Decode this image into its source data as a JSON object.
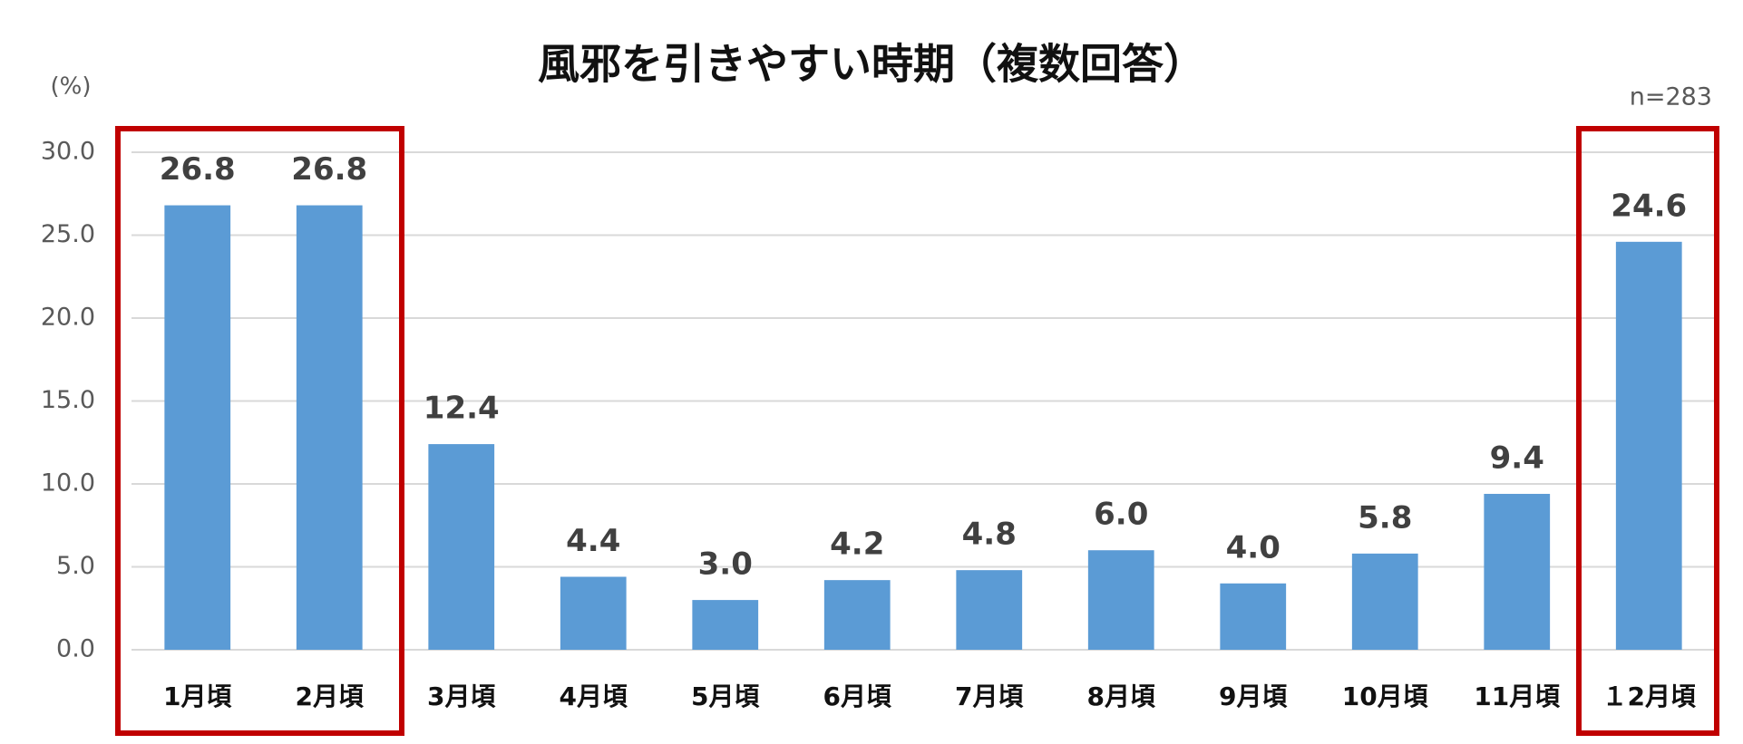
{
  "chart_data": {
    "type": "bar",
    "title": "風邪を引きやすい時期（複数回答）",
    "y_axis_label": "(%)",
    "annotation": "n=283",
    "categories": [
      "1月頃",
      "2月頃",
      "3月頃",
      "4月頃",
      "5月頃",
      "6月頃",
      "7月頃",
      "8月頃",
      "9月頃",
      "10月頃",
      "11月頃",
      "１2月頃"
    ],
    "values": [
      26.8,
      26.8,
      12.4,
      4.4,
      3.0,
      4.2,
      4.8,
      6.0,
      4.0,
      5.8,
      9.4,
      24.6
    ],
    "value_labels": [
      "26.8",
      "26.8",
      "12.4",
      "4.4",
      "3.0",
      "4.2",
      "4.8",
      "6.0",
      "4.0",
      "5.8",
      "9.4",
      "24.6"
    ],
    "color": "#5b9bd5",
    "ylim": [
      0,
      30
    ],
    "yticks": [
      {
        "value": 0,
        "label": "0.0"
      },
      {
        "value": 5,
        "label": "5.0"
      },
      {
        "value": 10,
        "label": "10.0"
      },
      {
        "value": 15,
        "label": "15.0"
      },
      {
        "value": 20,
        "label": "20.0"
      },
      {
        "value": 25,
        "label": "25.0"
      },
      {
        "value": 30,
        "label": "30.0"
      }
    ],
    "grid": true
  }
}
